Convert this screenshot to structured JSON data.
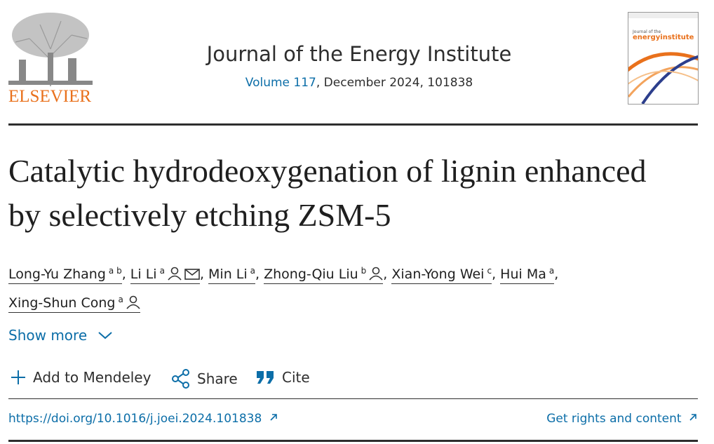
{
  "header": {
    "publisher": "ELSEVIER",
    "journal": "Journal of the Energy Institute",
    "volume": "Volume 117",
    "issue_info": ", December 2024, 101838",
    "cover": {
      "line1": "Journal of the",
      "line2": "energyinstitute"
    }
  },
  "article": {
    "title": "Catalytic hydrodeoxygenation of lignin enhanced by selectively etching ZSM-5",
    "separator": ",",
    "authors": [
      {
        "name": "Long-Yu Zhang",
        "aff": "a b",
        "person": false,
        "email": false
      },
      {
        "name": "Li Li",
        "aff": "a",
        "person": true,
        "email": true
      },
      {
        "name": "Min Li",
        "aff": "a",
        "person": false,
        "email": false
      },
      {
        "name": "Zhong-Qiu Liu",
        "aff": "b",
        "person": true,
        "email": false
      },
      {
        "name": "Xian-Yong Wei",
        "aff": "c",
        "person": false,
        "email": false
      },
      {
        "name": "Hui Ma",
        "aff": "a",
        "person": false,
        "email": false
      },
      {
        "name": "Xing-Shun Cong",
        "aff": "a",
        "person": true,
        "email": false
      }
    ],
    "show_more": "Show more"
  },
  "actions": [
    "Add to Mendeley",
    "Share",
    "Cite"
  ],
  "links": {
    "doi": "https://doi.org/10.1016/j.joei.2024.101838",
    "rights": "Get rights and content"
  }
}
